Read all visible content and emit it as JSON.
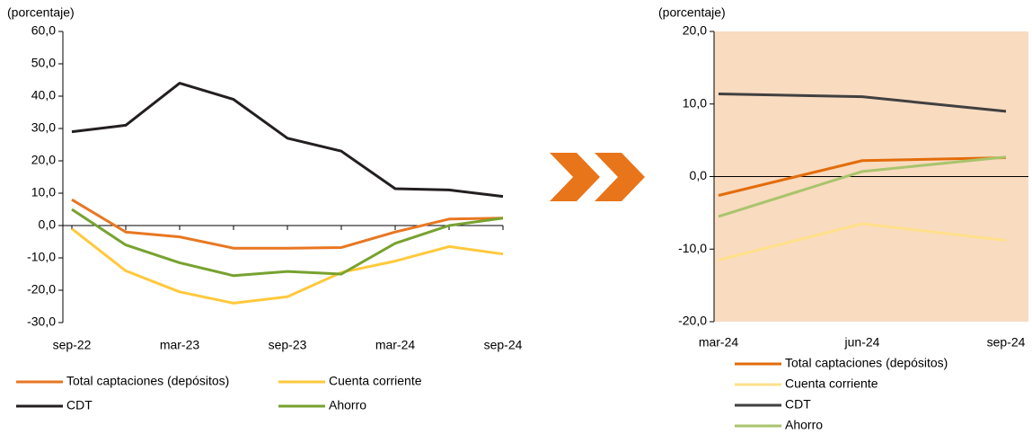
{
  "chart_data": [
    {
      "type": "line",
      "y_label": "(porcentaje)",
      "categories": [
        "sep-22",
        null,
        "mar-23",
        null,
        "sep-23",
        null,
        "mar-24",
        null,
        "sep-24"
      ],
      "ylim": [
        -30,
        60
      ],
      "yticks": [
        {
          "value": -30,
          "label": "-30,0"
        },
        {
          "value": -20,
          "label": "-20,0"
        },
        {
          "value": -10,
          "label": "-10,0"
        },
        {
          "value": 0,
          "label": "0,0"
        },
        {
          "value": 10,
          "label": "10,0"
        },
        {
          "value": 20,
          "label": "20,0"
        },
        {
          "value": 30,
          "label": "30,0"
        },
        {
          "value": 40,
          "label": "40,0"
        },
        {
          "value": 50,
          "label": "50,0"
        },
        {
          "value": 60,
          "label": "60,0"
        }
      ],
      "series": [
        {
          "name": "Total captaciones (depósitos)",
          "color": "#e87722",
          "values": [
            8,
            -2,
            -3.5,
            -7,
            -7,
            -6.8,
            -2,
            2,
            2.3
          ]
        },
        {
          "name": "Cuenta corriente",
          "color": "#ffc93c",
          "values": [
            -1,
            -14,
            -20.5,
            -24,
            -22,
            -14.5,
            -11,
            -6.5,
            -8.8
          ]
        },
        {
          "name": "CDT",
          "color": "#231f20",
          "values": [
            29,
            31,
            44,
            39,
            27,
            23,
            11.4,
            11,
            9
          ]
        },
        {
          "name": "Ahorro",
          "color": "#77a22f",
          "values": [
            5,
            -6,
            -11.5,
            -15.5,
            -14.2,
            -15,
            -5.5,
            0,
            2.3
          ]
        }
      ]
    },
    {
      "type": "line",
      "y_label": "(porcentaje)",
      "background": "#f9dbc0",
      "categories": [
        "mar-24",
        "jun-24",
        "sep-24"
      ],
      "ylim": [
        -20,
        20
      ],
      "yticks": [
        {
          "value": -20,
          "label": "-20,0"
        },
        {
          "value": -10,
          "label": "-10,0"
        },
        {
          "value": 0,
          "label": "0,0"
        },
        {
          "value": 10,
          "label": "10,0"
        },
        {
          "value": 20,
          "label": "20,0"
        }
      ],
      "series": [
        {
          "name": "Total captaciones (depósitos)",
          "color": "#e36c0a",
          "values": [
            -2.6,
            2.2,
            2.6
          ]
        },
        {
          "name": "Cuenta corriente",
          "color": "#ffe08a",
          "values": [
            -11.5,
            -6.5,
            -8.8
          ]
        },
        {
          "name": "CDT",
          "color": "#404040",
          "values": [
            11.4,
            11,
            9
          ]
        },
        {
          "name": "Ahorro",
          "color": "#a9c46c",
          "values": [
            -5.5,
            0.7,
            2.7
          ]
        }
      ]
    }
  ]
}
